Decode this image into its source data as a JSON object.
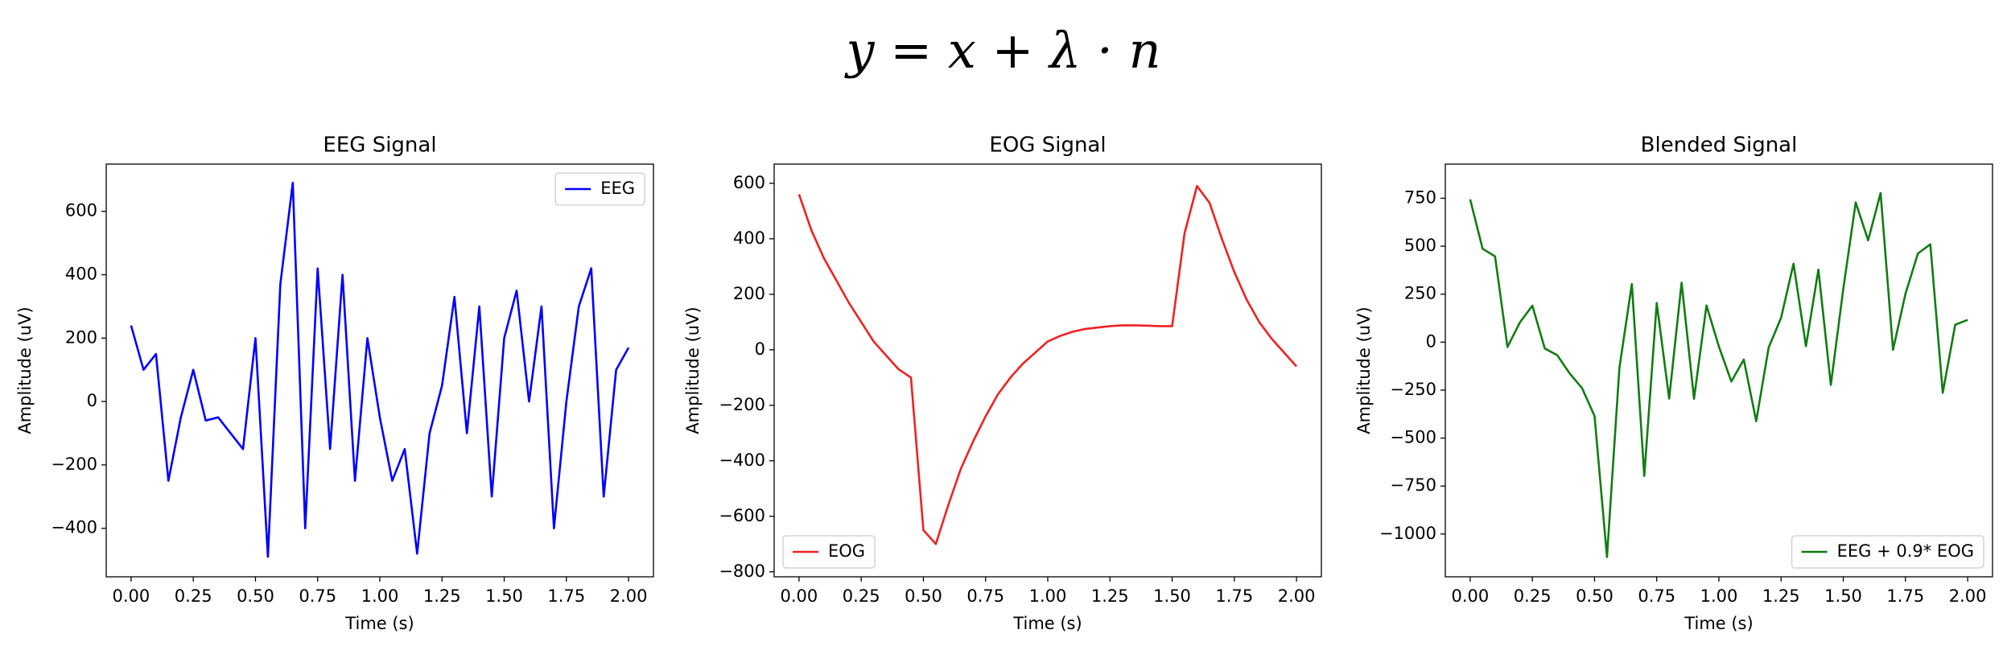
{
  "title": "y = x + λ · n",
  "chart_data": [
    {
      "type": "line",
      "title": "EEG Signal",
      "xlabel": "Time (s)",
      "ylabel": "Amplitude (uV)",
      "legend": "upper right",
      "x": [
        0,
        0.05,
        0.1,
        0.15,
        0.2,
        0.25,
        0.3,
        0.35,
        0.4,
        0.45,
        0.5,
        0.55,
        0.6,
        0.65,
        0.7,
        0.75,
        0.8,
        0.85,
        0.9,
        0.95,
        1.0,
        1.05,
        1.1,
        1.15,
        1.2,
        1.25,
        1.3,
        1.35,
        1.4,
        1.45,
        1.5,
        1.55,
        1.6,
        1.65,
        1.7,
        1.75,
        1.8,
        1.85,
        1.9,
        1.95,
        2.0
      ],
      "series": [
        {
          "name": "EEG",
          "color": "#0000ff",
          "values": [
            240,
            100,
            150,
            -250,
            -50,
            100,
            -60,
            -50,
            -100,
            -150,
            200,
            -490,
            370,
            690,
            -400,
            420,
            -150,
            400,
            -250,
            200,
            -50,
            -250,
            -150,
            -480,
            -100,
            50,
            330,
            -100,
            300,
            -300,
            200,
            350,
            0,
            300,
            -400,
            0,
            300,
            420,
            -300,
            100,
            170
          ]
        }
      ],
      "xlim": [
        -0.1,
        2.1
      ],
      "xticks": [
        {
          "value": 0,
          "label": "0.00"
        },
        {
          "value": 0.25,
          "label": "0.25"
        },
        {
          "value": 0.5,
          "label": "0.50"
        },
        {
          "value": 0.75,
          "label": "0.75"
        },
        {
          "value": 1,
          "label": "1.00"
        },
        {
          "value": 1.25,
          "label": "1.25"
        },
        {
          "value": 1.5,
          "label": "1.50"
        },
        {
          "value": 1.75,
          "label": "1.75"
        },
        {
          "value": 2,
          "label": "2.00"
        }
      ],
      "ylim": [
        -553,
        749
      ],
      "yticks": [
        {
          "value": -400,
          "label": "−400"
        },
        {
          "value": -200,
          "label": "−200"
        },
        0,
        200,
        400,
        600
      ]
    },
    {
      "type": "line",
      "title": "EOG Signal",
      "xlabel": "Time (s)",
      "ylabel": "Amplitude (uV)",
      "legend": "lower left",
      "x": [
        0,
        0.05,
        0.1,
        0.15,
        0.2,
        0.25,
        0.3,
        0.35,
        0.4,
        0.45,
        0.5,
        0.55,
        0.6,
        0.65,
        0.7,
        0.75,
        0.8,
        0.85,
        0.9,
        0.95,
        1.0,
        1.05,
        1.1,
        1.15,
        1.2,
        1.25,
        1.3,
        1.35,
        1.4,
        1.45,
        1.5,
        1.55,
        1.6,
        1.65,
        1.7,
        1.75,
        1.8,
        1.85,
        1.9,
        1.95,
        2.0
      ],
      "series": [
        {
          "name": "EOG",
          "color": "#ee2222",
          "values": [
            560,
            430,
            330,
            250,
            170,
            100,
            30,
            -20,
            -70,
            -100,
            -650,
            -700,
            -560,
            -430,
            -330,
            -240,
            -160,
            -100,
            -50,
            -10,
            30,
            50,
            65,
            75,
            80,
            85,
            88,
            88,
            87,
            85,
            85,
            420,
            590,
            530,
            400,
            280,
            180,
            100,
            40,
            -10,
            -60
          ]
        }
      ],
      "xlim": [
        -0.1,
        2.1
      ],
      "xticks": [
        {
          "value": 0,
          "label": "0.00"
        },
        {
          "value": 0.25,
          "label": "0.25"
        },
        {
          "value": 0.5,
          "label": "0.50"
        },
        {
          "value": 0.75,
          "label": "0.75"
        },
        {
          "value": 1,
          "label": "1.00"
        },
        {
          "value": 1.25,
          "label": "1.25"
        },
        {
          "value": 1.5,
          "label": "1.50"
        },
        {
          "value": 1.75,
          "label": "1.75"
        },
        {
          "value": 2,
          "label": "2.00"
        }
      ],
      "ylim": [
        -818,
        669
      ],
      "yticks": [
        {
          "value": -800,
          "label": "−800"
        },
        {
          "value": -600,
          "label": "−600"
        },
        {
          "value": -400,
          "label": "−400"
        },
        {
          "value": -200,
          "label": "−200"
        },
        0,
        200,
        400,
        600
      ]
    },
    {
      "type": "line",
      "title": "Blended Signal",
      "xlabel": "Time (s)",
      "ylabel": "Amplitude (uV)",
      "legend": "lower right",
      "x": [
        0,
        0.05,
        0.1,
        0.15,
        0.2,
        0.25,
        0.3,
        0.35,
        0.4,
        0.45,
        0.5,
        0.55,
        0.6,
        0.65,
        0.7,
        0.75,
        0.8,
        0.85,
        0.9,
        0.95,
        1.0,
        1.05,
        1.1,
        1.15,
        1.2,
        1.25,
        1.3,
        1.35,
        1.4,
        1.45,
        1.5,
        1.55,
        1.6,
        1.65,
        1.7,
        1.75,
        1.8,
        1.85,
        1.9,
        1.95,
        2.0
      ],
      "series": [
        {
          "name": "EEG + 0.9* EOG",
          "color": "#117d11",
          "values": [
            744,
            487,
            447,
            -25,
            103,
            190,
            -33,
            -68,
            -163,
            -240,
            -385,
            -1120,
            -134,
            303,
            -697,
            204,
            -294,
            310,
            -295,
            191,
            -23,
            -205,
            -91,
            -412,
            -28,
            127,
            409,
            -21,
            378,
            -223,
            277,
            728,
            531,
            777,
            -40,
            252,
            462,
            510,
            -264,
            91,
            116
          ]
        }
      ],
      "xlim": [
        -0.1,
        2.1
      ],
      "xticks": [
        {
          "value": 0,
          "label": "0.00"
        },
        {
          "value": 0.25,
          "label": "0.25"
        },
        {
          "value": 0.5,
          "label": "0.50"
        },
        {
          "value": 0.75,
          "label": "0.75"
        },
        {
          "value": 1,
          "label": "1.00"
        },
        {
          "value": 1.25,
          "label": "1.25"
        },
        {
          "value": 1.5,
          "label": "1.50"
        },
        {
          "value": 1.75,
          "label": "1.75"
        },
        {
          "value": 2,
          "label": "2.00"
        }
      ],
      "ylim": [
        -1223,
        928
      ],
      "yticks": [
        {
          "value": -1000,
          "label": "−1000"
        },
        {
          "value": -750,
          "label": "−750"
        },
        {
          "value": -500,
          "label": "−500"
        },
        {
          "value": -250,
          "label": "−250"
        },
        0,
        250,
        500,
        750
      ]
    }
  ]
}
